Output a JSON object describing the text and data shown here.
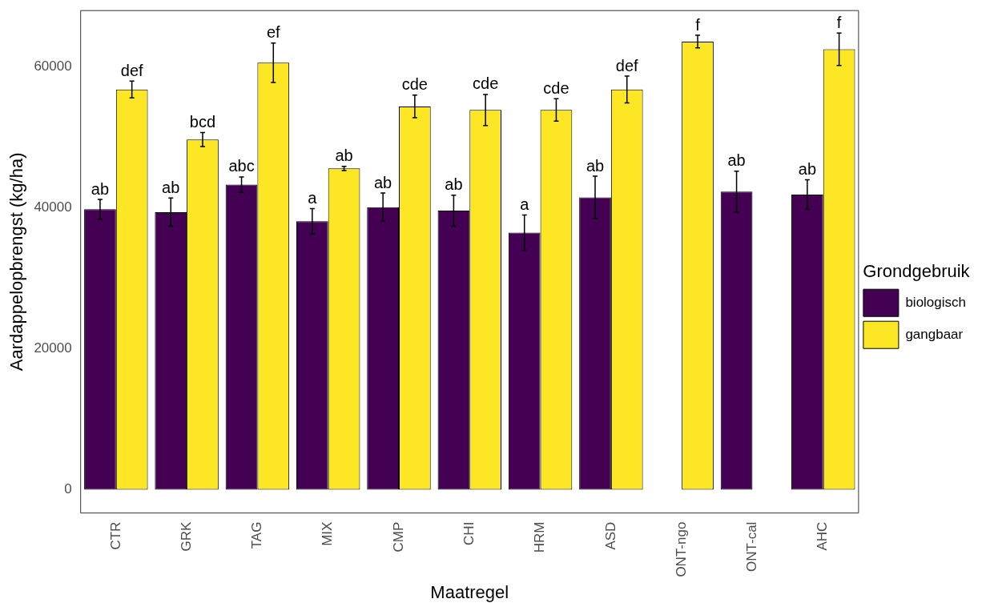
{
  "chart_data": {
    "type": "bar",
    "xlabel": "Maatregel",
    "ylabel": "Aardappelopbrengst (kg/ha)",
    "legend_title": "Grondgebruik",
    "legend": "right",
    "grid": false,
    "categories": [
      "CTR",
      "GRK",
      "TAG",
      "MIX",
      "CMP",
      "CHI",
      "HRM",
      "ASD",
      "ONT-ngo",
      "ONT-cal",
      "AHC"
    ],
    "ylim": [
      -3300,
      68000
    ],
    "yticks": [
      0,
      20000,
      40000,
      60000
    ],
    "series": [
      {
        "name": "biologisch",
        "color": "#440154",
        "values": [
          39800,
          39400,
          43300,
          38100,
          40100,
          39600,
          36500,
          41500,
          null,
          42300,
          41900
        ],
        "errors": [
          1400,
          2000,
          1100,
          1800,
          2000,
          2200,
          2500,
          3000,
          null,
          2900,
          2100
        ],
        "value_labels": [
          "ab",
          "ab",
          "abc",
          "a",
          "ab",
          "ab",
          "a",
          "ab",
          null,
          "ab",
          "ab"
        ]
      },
      {
        "name": "gangbaar",
        "color": "#fde725",
        "values": [
          56800,
          49700,
          60600,
          45600,
          54400,
          53900,
          53900,
          56800,
          63600,
          null,
          62500
        ],
        "errors": [
          1200,
          1000,
          2800,
          300,
          1600,
          2200,
          1600,
          1900,
          900,
          null,
          2300
        ],
        "value_labels": [
          "def",
          "bcd",
          "ef",
          "ab",
          "cde",
          "cde",
          "cde",
          "def",
          "f",
          null,
          "f"
        ]
      }
    ]
  }
}
